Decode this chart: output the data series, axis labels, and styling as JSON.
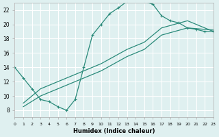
{
  "xlabel": "Humidex (Indice chaleur)",
  "bg_color": "#dff0f0",
  "grid_color": "#ffffff",
  "line_color": "#2a8a7a",
  "xlim": [
    0,
    23
  ],
  "ylim": [
    7,
    23
  ],
  "xticks": [
    0,
    1,
    2,
    3,
    4,
    5,
    6,
    7,
    8,
    9,
    10,
    11,
    12,
    13,
    14,
    15,
    16,
    17,
    18,
    19,
    20,
    21,
    22,
    23
  ],
  "yticks": [
    8,
    10,
    12,
    14,
    16,
    18,
    20,
    22
  ],
  "line1_x": [
    0,
    1,
    2,
    3,
    4,
    5,
    6,
    7,
    8,
    9,
    10,
    11,
    12,
    13,
    14,
    15,
    16,
    17,
    18,
    19,
    20,
    21,
    22,
    23
  ],
  "line1_y": [
    14.0,
    12.5,
    11.0,
    9.5,
    9.2,
    8.5,
    8.0,
    9.5,
    14.0,
    18.5,
    20.0,
    21.5,
    22.3,
    23.2,
    23.5,
    23.2,
    22.8,
    21.2,
    20.5,
    20.2,
    19.5,
    19.3,
    19.0,
    19.0
  ],
  "line2_x": [
    1,
    3,
    6,
    10,
    13,
    15,
    17,
    20,
    23
  ],
  "line2_y": [
    9.0,
    11.0,
    12.5,
    14.5,
    16.5,
    17.5,
    19.5,
    20.5,
    19.0
  ],
  "line3_x": [
    1,
    3,
    6,
    10,
    13,
    15,
    17,
    20,
    23
  ],
  "line3_y": [
    8.5,
    10.0,
    11.5,
    13.5,
    15.5,
    16.5,
    18.5,
    19.5,
    19.2
  ]
}
